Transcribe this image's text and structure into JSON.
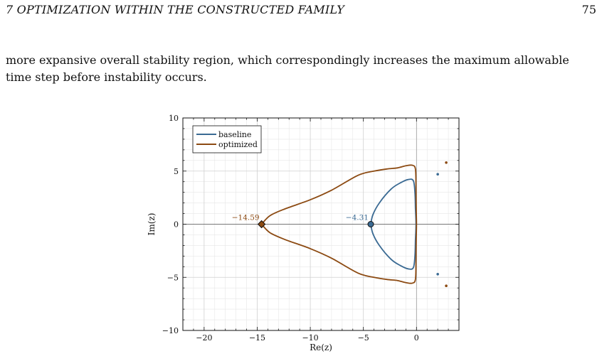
{
  "header": {
    "section_title": "7  OPTIMIZATION WITHIN THE CONSTRUCTED FAMILY",
    "page_number": "75"
  },
  "paragraph": {
    "line1": "more expansive overall stability region, which correspondingly increases the maximum allowable",
    "line2": "time step before instability occurs."
  },
  "chart_data": {
    "type": "line",
    "title": "",
    "xlabel": "Re(z)",
    "ylabel": "Im(z)",
    "xlim": [
      -22,
      4
    ],
    "ylim": [
      -10,
      10
    ],
    "xticks": [
      -20,
      -15,
      -10,
      -5,
      0
    ],
    "yticks": [
      -10,
      -5,
      0,
      5,
      10
    ],
    "xtick_labels": [
      "−20",
      "−15",
      "−10",
      "−5",
      "0"
    ],
    "ytick_labels": [
      "−10",
      "−5",
      "0",
      "5",
      "10"
    ],
    "grid": true,
    "legend_position": "top-left",
    "colors": {
      "baseline": "#3a6a93",
      "optimized": "#8c4a12"
    },
    "series": [
      {
        "name": "baseline",
        "color": "#3a6a93",
        "upper_boundary": [
          [
            -4.31,
            0
          ],
          [
            -4.1,
            0.9
          ],
          [
            -3.5,
            2.0
          ],
          [
            -2.4,
            3.3
          ],
          [
            -1.5,
            3.9
          ],
          [
            -0.8,
            4.2
          ],
          [
            -0.3,
            4.1
          ],
          [
            -0.15,
            3.0
          ],
          [
            -0.1,
            1.5
          ],
          [
            -0.05,
            0
          ]
        ],
        "isolated_points": [
          [
            2.0,
            4.7
          ],
          [
            2.0,
            -4.7
          ]
        ],
        "marked_point": {
          "x": -4.31,
          "y": 0,
          "label": "−4.31"
        }
      },
      {
        "name": "optimized",
        "color": "#8c4a12",
        "upper_boundary": [
          [
            -14.59,
            0
          ],
          [
            -13.8,
            0.8
          ],
          [
            -12.5,
            1.4
          ],
          [
            -10.0,
            2.3
          ],
          [
            -8.0,
            3.2
          ],
          [
            -5.5,
            4.6
          ],
          [
            -4.0,
            5.0
          ],
          [
            -2.8,
            5.2
          ],
          [
            -1.8,
            5.3
          ],
          [
            -1.0,
            5.5
          ],
          [
            -0.4,
            5.55
          ],
          [
            -0.1,
            5.2
          ],
          [
            -0.05,
            3.5
          ],
          [
            -0.03,
            1.5
          ],
          [
            0.0,
            0
          ]
        ],
        "isolated_points": [
          [
            2.8,
            5.8
          ],
          [
            2.8,
            -5.8
          ]
        ],
        "marked_point": {
          "x": -14.59,
          "y": 0,
          "label": "−14.59"
        }
      }
    ]
  }
}
